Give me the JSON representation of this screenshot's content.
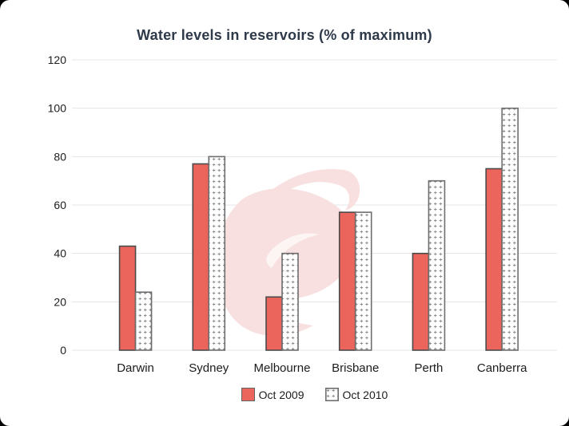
{
  "chart_data": {
    "type": "bar",
    "title": "Water levels in reservoirs (% of maximum)",
    "categories": [
      "Darwin",
      "Sydney",
      "Melbourne",
      "Brisbane",
      "Perth",
      "Canberra"
    ],
    "series": [
      {
        "name": "Oct 2009",
        "values": [
          43,
          77,
          22,
          57,
          40,
          75
        ],
        "fill_style": "solid",
        "color": "#ec655c"
      },
      {
        "name": "Oct 2010",
        "values": [
          24,
          80,
          40,
          57,
          70,
          100
        ],
        "fill_style": "dotted-pattern",
        "color": "#ffffff"
      }
    ],
    "ylim": [
      0,
      120
    ],
    "yticks": [
      0,
      20,
      40,
      60,
      80,
      100,
      120
    ],
    "grid": true,
    "legend_position": "bottom",
    "xlabel": "",
    "ylabel": ""
  },
  "colors": {
    "bar_2009_fill": "#ec655c",
    "bar_2009_border": "#4a4a4a",
    "bar_2010_fill": "#ffffff",
    "bar_2010_border": "#6e6e6e",
    "bar_2010_dot": "#8a8a8a",
    "gridline": "#e4e4e4",
    "title_text": "#2e3949",
    "axis_text": "#1c1c1c",
    "watermark_pink": "#f8e0e0",
    "watermark_highlight": "#fdf4f4",
    "card_background": "#ffffff"
  }
}
